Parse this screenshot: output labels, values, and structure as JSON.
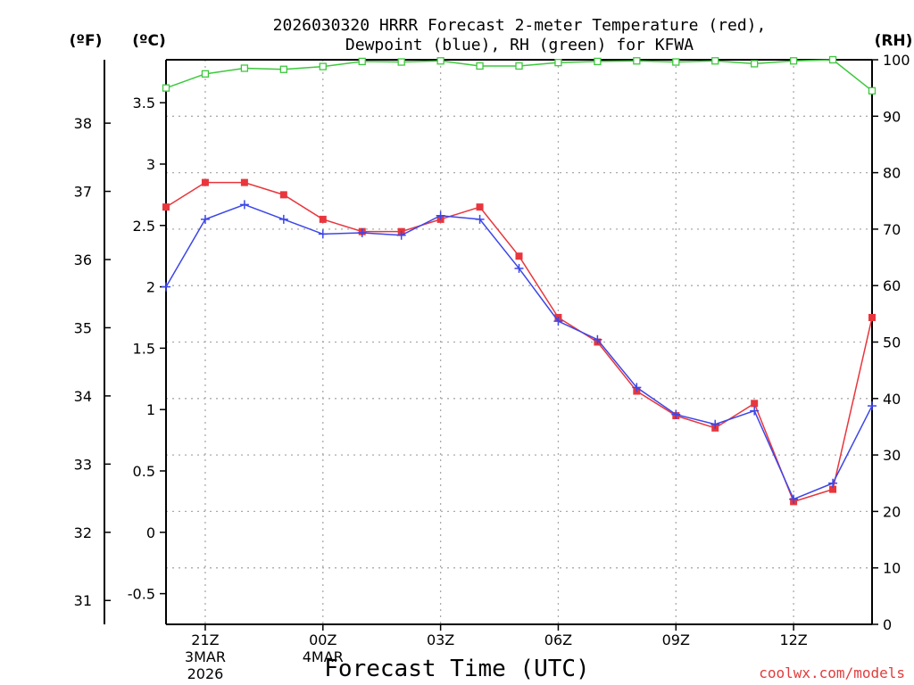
{
  "chart_data": {
    "type": "line",
    "title_line1": "2026030320 HRRR Forecast 2-meter Temperature (red),",
    "title_line2": "Dewpoint (blue), RH (green) for KFWA",
    "xlabel": "Forecast Time (UTC)",
    "credit": "coolwx.com/models",
    "left_unit_f": "(ºF)",
    "left_unit_c": "(ºC)",
    "right_unit": "(RH)",
    "x_hours": [
      20,
      21,
      22,
      23,
      24,
      25,
      26,
      27,
      28,
      29,
      30,
      31,
      32,
      33,
      34,
      35,
      36,
      37,
      38
    ],
    "x_ticks": [
      {
        "hour": 21,
        "label": "21Z",
        "sub1": "3MAR",
        "sub2": "2026"
      },
      {
        "hour": 24,
        "label": "00Z",
        "sub1": "4MAR",
        "sub2": ""
      },
      {
        "hour": 27,
        "label": "03Z",
        "sub1": "",
        "sub2": ""
      },
      {
        "hour": 30,
        "label": "06Z",
        "sub1": "",
        "sub2": ""
      },
      {
        "hour": 33,
        "label": "09Z",
        "sub1": "",
        "sub2": ""
      },
      {
        "hour": 36,
        "label": "12Z",
        "sub1": "",
        "sub2": ""
      }
    ],
    "xlim": [
      20,
      38
    ],
    "ylim_c": [
      -0.75,
      3.85
    ],
    "ylim_rh": [
      0,
      100
    ],
    "c_ticks": [
      "-0.5",
      "0",
      "0.5",
      "1",
      "1.5",
      "2",
      "2.5",
      "3",
      "3.5"
    ],
    "f_ticks": [
      "31",
      "32",
      "33",
      "34",
      "35",
      "36",
      "37",
      "38"
    ],
    "rh_ticks": [
      "0",
      "10",
      "20",
      "30",
      "40",
      "50",
      "60",
      "70",
      "80",
      "90",
      "100"
    ],
    "series": [
      {
        "name": "2-meter Temperature",
        "color": "#e8363c",
        "marker": "filled-square",
        "values": [
          2.65,
          2.85,
          2.85,
          2.75,
          2.55,
          2.45,
          2.45,
          2.55,
          2.65,
          2.25,
          1.75,
          1.55,
          1.15,
          0.95,
          0.85,
          1.05,
          0.25,
          0.35,
          1.75
        ]
      },
      {
        "name": "Dewpoint",
        "color": "#3c46e8",
        "marker": "plus",
        "values": [
          2.0,
          2.55,
          2.67,
          2.55,
          2.43,
          2.44,
          2.42,
          2.58,
          2.55,
          2.15,
          1.72,
          1.57,
          1.18,
          0.96,
          0.88,
          0.99,
          0.27,
          0.4,
          1.03
        ]
      },
      {
        "name": "RH",
        "color": "#3cc83c",
        "marker": "open-square",
        "values": [
          95.0,
          97.5,
          98.5,
          98.3,
          98.8,
          99.7,
          99.6,
          99.8,
          98.9,
          98.9,
          99.5,
          99.7,
          99.8,
          99.6,
          99.8,
          99.3,
          99.8,
          100.0,
          94.5
        ]
      }
    ]
  }
}
